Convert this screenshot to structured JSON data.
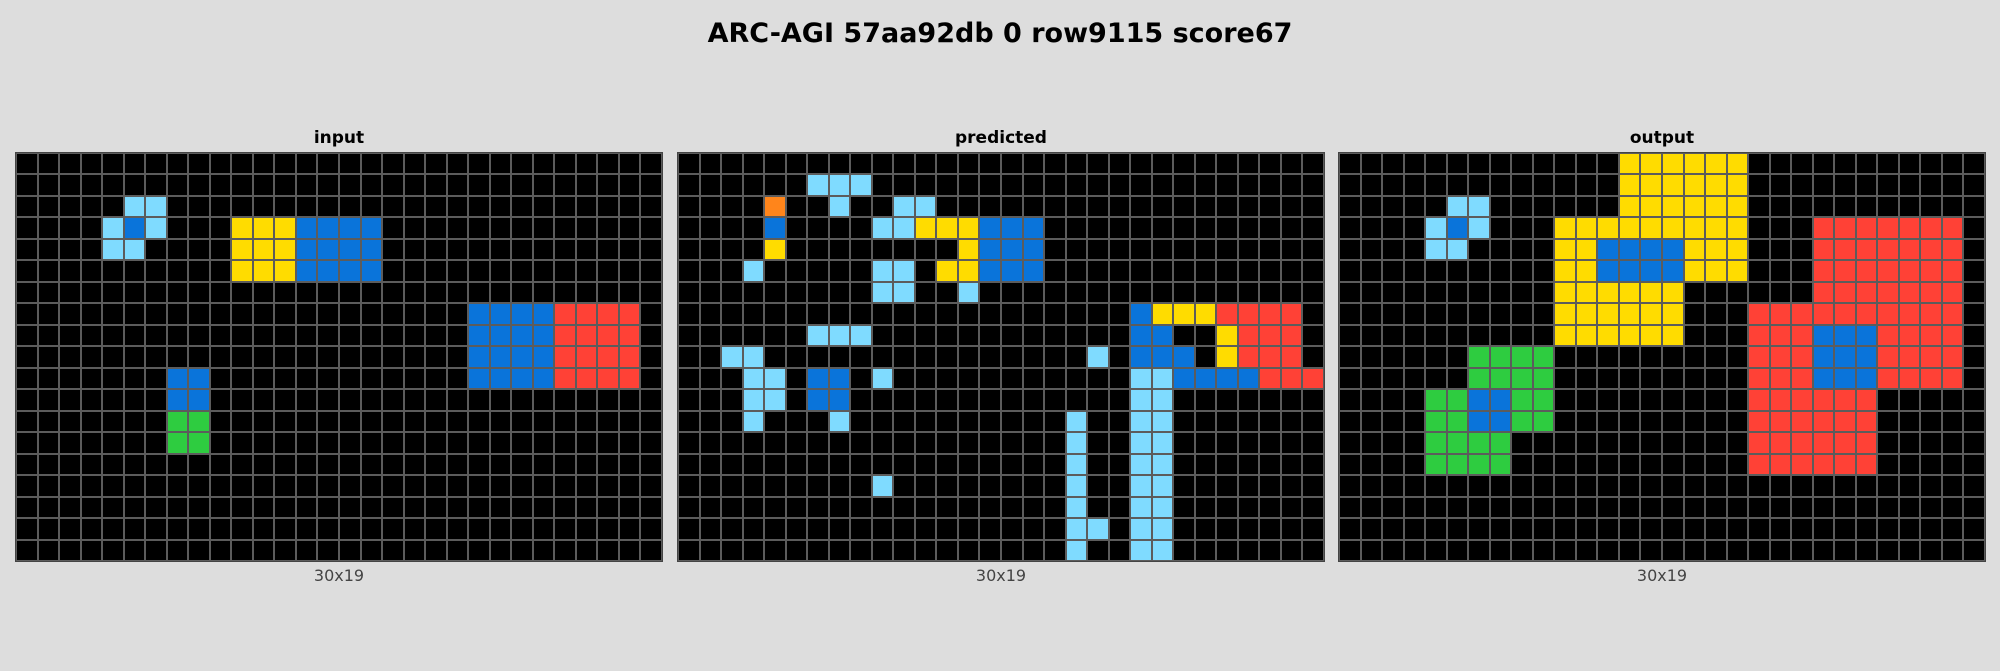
{
  "title": "ARC-AGI 57aa92db 0 row9115 score67",
  "palette": {
    "0": "#000000",
    "1": "#0A74DA",
    "2": "#FF4136",
    "3": "#2ECC40",
    "4": "#FFDC00",
    "7": "#FF851B",
    "8": "#7FDBFF"
  },
  "panels": [
    {
      "label": "input",
      "dims": "30x19",
      "grid": [
        "000000000000000000000000000000",
        "000000000000000000000000000000",
        "000008800000000000000000000000",
        "000081800044411110000000000000",
        "000088000044411110000000000000",
        "000000000044411110000000000000",
        "000000000000000000000000000000",
        "000000000000000000000111122220",
        "000000000000000000000111122220",
        "000000000000000000000111122220",
        "000000011000000000000111122220",
        "000000011000000000000000000000",
        "000000033000000000000000000000",
        "000000033000000000000000000000",
        "000000000000000000000000000000",
        "000000000000000000000000000000",
        "000000000000000000000000000000",
        "000000000000000000000000000000",
        "000000000000000000000000000000"
      ]
    },
    {
      "label": "predicted",
      "dims": "30x19",
      "grid": [
        "000000000000000000000000000000",
        "000000888000000000000000000000",
        "000070080088000000000000000000",
        "000010000884441110000000000000",
        "000040000000041110000000000000",
        "000800000880441110000000000000",
        "000000000880080000000000000000",
        "000000000000000000000144422220",
        "000000888000000000000110042220",
        "008800000000000000080111042220",
        "000880110800000000000881111222",
        "000880110000000000000880000000",
        "000800080000000000800880000000",
        "000000000000000000800880000000",
        "000000000000000000800880000000",
        "000000000800000000800880000000",
        "000000000000000000800880000000",
        "000000000000000000880880000000",
        "000000000000000000800880000000"
      ]
    },
    {
      "label": "output",
      "dims": "30x19",
      "grid": [
        "000000000000044444400000000000",
        "000000000000044444400000000000",
        "000008800000044444400000000000",
        "000081800044444444400022222220",
        "000088000044111144400022222220",
        "000000000044111144400022222220",
        "000000000044444400000022222220",
        "000000000044444400022222222220",
        "000000000044444400022211122220",
        "000000333300000000022211122220",
        "000000333300000000022211122220",
        "000033113300000000022222200000",
        "000033113300000000022222200000",
        "000033330000000000022222200000",
        "000033330000000000022222200000",
        "000000000000000000000000000000",
        "000000000000000000000000000000",
        "000000000000000000000000000000",
        "000000000000000000000000000000"
      ]
    }
  ]
}
